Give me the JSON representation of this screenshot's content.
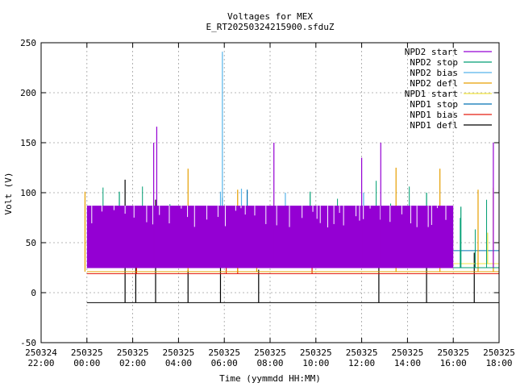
{
  "chart_data": {
    "type": "line",
    "title": "Voltages for MEX",
    "subtitle": "E_RT20250324215900.sfduZ",
    "xlabel": "Time (yymmdd HH:MM)",
    "ylabel": "Volt (V)",
    "xlim": [
      "2025-03-24 22:00",
      "2025-03-25 18:00"
    ],
    "ylim": [
      -50,
      250
    ],
    "grid": true,
    "legend_position": "top-right",
    "y_ticks": [
      "-50",
      "0",
      "50",
      "100",
      "150",
      "200",
      "250"
    ],
    "x_ticks": [
      {
        "date": "250324",
        "time": "22:00"
      },
      {
        "date": "250325",
        "time": "00:00"
      },
      {
        "date": "250325",
        "time": "02:00"
      },
      {
        "date": "250325",
        "time": "04:00"
      },
      {
        "date": "250325",
        "time": "06:00"
      },
      {
        "date": "250325",
        "time": "08:00"
      },
      {
        "date": "250325",
        "time": "10:00"
      },
      {
        "date": "250325",
        "time": "12:00"
      },
      {
        "date": "250325",
        "time": "14:00"
      },
      {
        "date": "250325",
        "time": "16:00"
      },
      {
        "date": "250325",
        "time": "18:00"
      }
    ],
    "series": [
      {
        "name": "NPD2 start",
        "color": "#9400d3",
        "base": 25,
        "high": 87,
        "start": "2025-03-25 00:00",
        "end": "2025-03-25 16:00",
        "spikes": [
          [
            "2025-03-25 02:55",
            150
          ],
          [
            "2025-03-25 03:03",
            166
          ],
          [
            "2025-03-25 08:10",
            150
          ],
          [
            "2025-03-25 12:50",
            150
          ],
          [
            "2025-03-25 17:45",
            150
          ],
          [
            "2025-03-25 12:00",
            135
          ]
        ]
      },
      {
        "name": "NPD2 stop",
        "color": "#009e73",
        "base": 25,
        "high": 87,
        "start": "2025-03-25 00:00",
        "end": "2025-03-25 18:00",
        "spikes": [
          [
            "2025-03-25 01:25",
            101
          ],
          [
            "2025-03-25 09:45",
            101
          ],
          [
            "2025-03-25 14:50",
            100
          ],
          [
            "2025-03-25 16:20",
            86
          ]
        ]
      },
      {
        "name": "NPD2 bias",
        "color": "#56b4e9",
        "base": 25,
        "start": "2025-03-25 00:00",
        "end": "2025-03-25 18:00",
        "spikes": [
          [
            "2025-03-25 05:55",
            241
          ],
          [
            "2025-03-25 05:50",
            101
          ],
          [
            "2025-03-25 06:45",
            104
          ],
          [
            "2025-03-25 08:40",
            100
          ],
          [
            "2025-03-25 12:05",
            100
          ]
        ]
      },
      {
        "name": "NPD2 defl",
        "color": "#e69f00",
        "base": 21,
        "start": "2025-03-25 00:00",
        "end": "2025-03-25 18:00",
        "spikes": [
          [
            "2025-03-24 23:55",
            101
          ],
          [
            "2025-03-25 04:25",
            124
          ],
          [
            "2025-03-25 06:35",
            103
          ],
          [
            "2025-03-25 13:30",
            125
          ],
          [
            "2025-03-25 15:25",
            124
          ],
          [
            "2025-03-25 17:05",
            103
          ],
          [
            "2025-03-25 17:45",
            105
          ],
          [
            "2025-03-25 07:25",
            40
          ]
        ]
      },
      {
        "name": "NPD1 start",
        "color": "#f0e442",
        "base": 29,
        "start": "2025-03-25 00:00",
        "end": "2025-03-25 18:00",
        "spikes": [
          [
            "2025-03-25 17:30",
            60
          ]
        ]
      },
      {
        "name": "NPD1 stop",
        "color": "#0072b2",
        "base": 42,
        "start": "2025-03-25 00:00",
        "end": "2025-03-25 18:00",
        "spikes": [
          [
            "2025-03-25 05:55",
            95
          ],
          [
            "2025-03-25 07:00",
            103
          ]
        ]
      },
      {
        "name": "NPD1 bias",
        "color": "#e51e10",
        "base": 19,
        "start": "2025-03-25 00:00",
        "end": "2025-03-25 18:00",
        "spikes": [
          [
            "2025-03-25 02:10",
            62
          ],
          [
            "2025-03-25 06:05",
            70
          ],
          [
            "2025-03-25 06:35",
            55
          ],
          [
            "2025-03-25 09:50",
            60
          ]
        ]
      },
      {
        "name": "NPD1 defl",
        "color": "#000000",
        "base": -10,
        "start": "2025-03-25 00:00",
        "end": "2025-03-25 18:00",
        "spikes": [
          [
            "2025-03-25 01:40",
            113
          ],
          [
            "2025-03-25 02:08",
            63
          ],
          [
            "2025-03-25 03:00",
            93
          ],
          [
            "2025-03-25 04:25",
            23
          ],
          [
            "2025-03-25 05:50",
            65
          ],
          [
            "2025-03-25 07:30",
            23
          ],
          [
            "2025-03-25 12:45",
            30
          ],
          [
            "2025-03-25 14:50",
            25
          ],
          [
            "2025-03-25 16:55",
            40
          ]
        ]
      }
    ]
  }
}
